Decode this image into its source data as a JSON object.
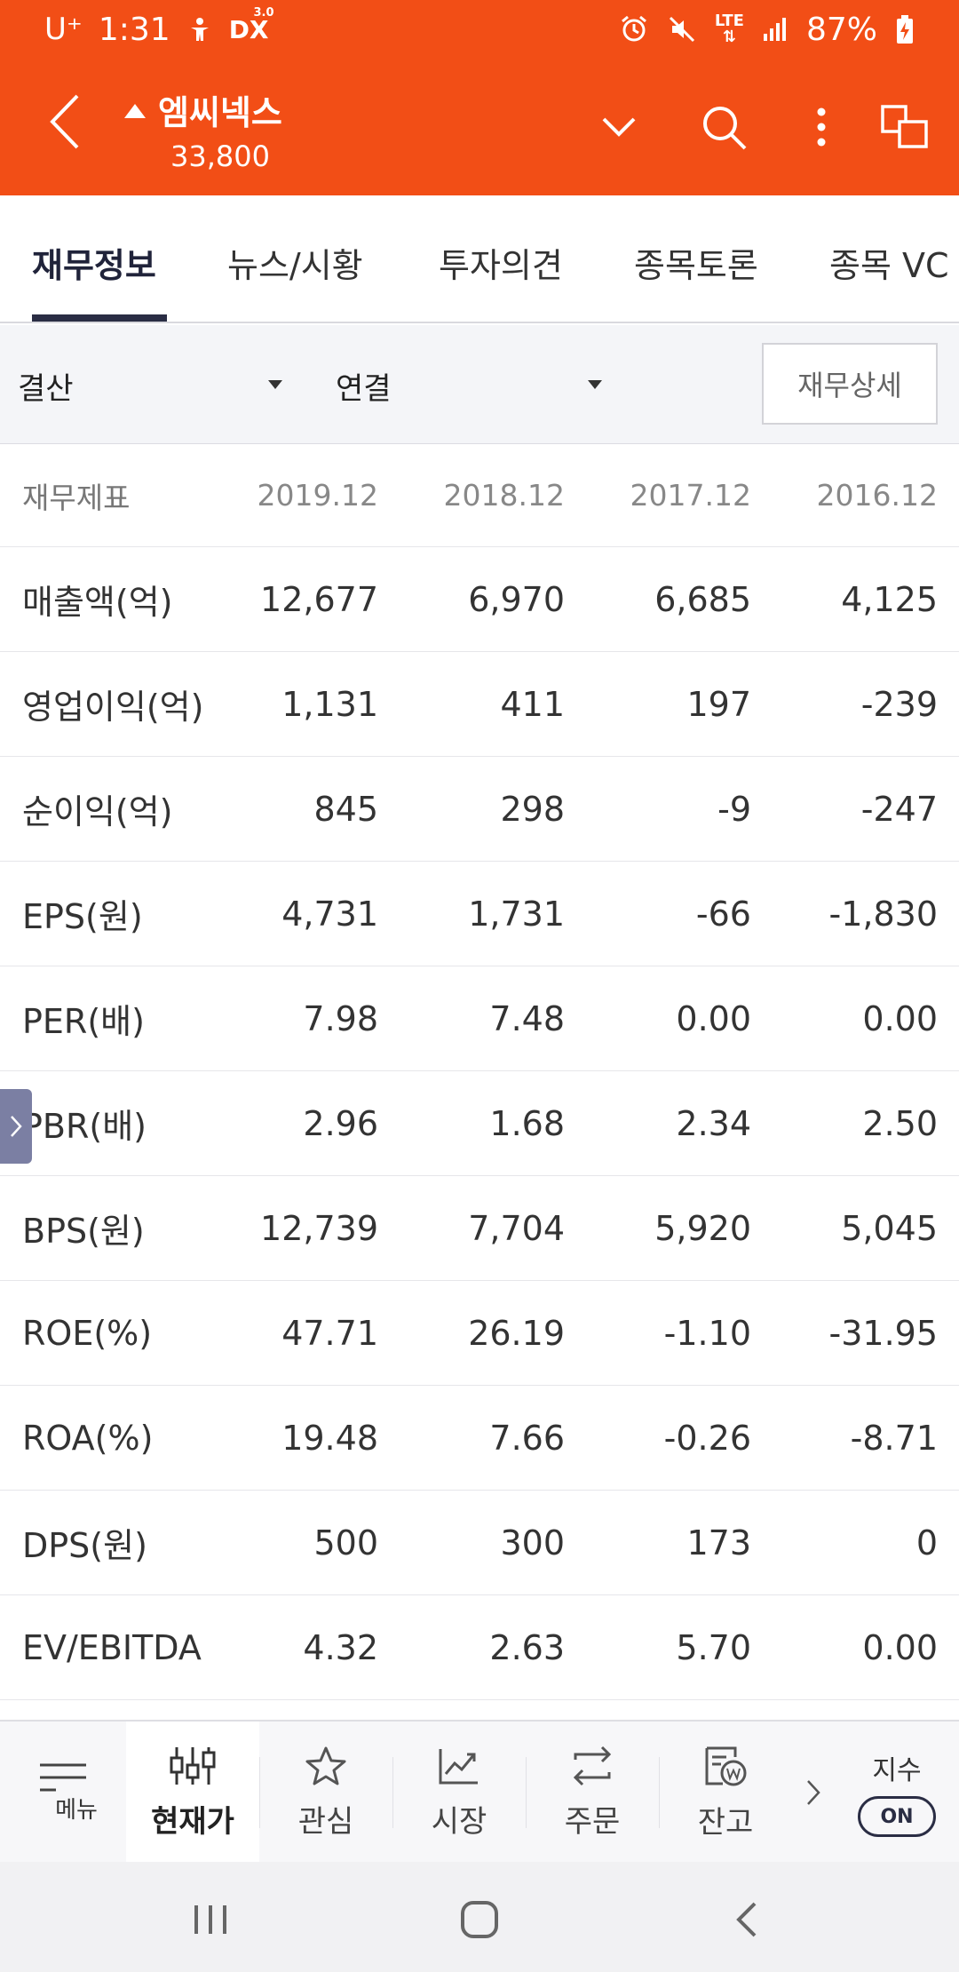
{
  "status_bar": {
    "carrier": "U⁺",
    "time": "1:31",
    "network": "LTE",
    "battery": "87%",
    "dex_label": "DX",
    "dex_version": "3.0"
  },
  "header": {
    "stock_name": "엠씨넥스",
    "stock_price": "33,800",
    "price_direction": "up",
    "accent_color": "#f24e16"
  },
  "tabs": [
    {
      "label": "재무정보",
      "active": true
    },
    {
      "label": "뉴스/시황",
      "active": false
    },
    {
      "label": "투자의견",
      "active": false
    },
    {
      "label": "종목토론",
      "active": false
    },
    {
      "label": "종목 VC",
      "active": false
    }
  ],
  "filters": {
    "period_select": "결산",
    "consolidation_select": "연결",
    "detail_button": "재무상세"
  },
  "table": {
    "header_label": "재무제표",
    "periods": [
      "2019.12",
      "2018.12",
      "2017.12",
      "2016.12"
    ],
    "rows": [
      {
        "label": "매출액(억)",
        "values": [
          "12,677",
          "6,970",
          "6,685",
          "4,125"
        ]
      },
      {
        "label": "영업이익(억)",
        "values": [
          "1,131",
          "411",
          "197",
          "-239"
        ]
      },
      {
        "label": "순이익(억)",
        "values": [
          "845",
          "298",
          "-9",
          "-247"
        ]
      },
      {
        "label": "EPS(원)",
        "values": [
          "4,731",
          "1,731",
          "-66",
          "-1,830"
        ]
      },
      {
        "label": "PER(배)",
        "values": [
          "7.98",
          "7.48",
          "0.00",
          "0.00"
        ]
      },
      {
        "label": "PBR(배)",
        "values": [
          "2.96",
          "1.68",
          "2.34",
          "2.50"
        ]
      },
      {
        "label": "BPS(원)",
        "values": [
          "12,739",
          "7,704",
          "5,920",
          "5,045"
        ]
      },
      {
        "label": "ROE(%)",
        "values": [
          "47.71",
          "26.19",
          "-1.10",
          "-31.95"
        ]
      },
      {
        "label": "ROA(%)",
        "values": [
          "19.48",
          "7.66",
          "-0.26",
          "-8.71"
        ]
      },
      {
        "label": "DPS(원)",
        "values": [
          "500",
          "300",
          "173",
          "0"
        ]
      },
      {
        "label": "EV/EBITDA",
        "values": [
          "4.32",
          "2.63",
          "5.70",
          "0.00"
        ]
      }
    ]
  },
  "bottom_nav": {
    "menu_label": "메뉴",
    "items": [
      {
        "label": "현재가",
        "icon": "candlestick-icon",
        "active": true
      },
      {
        "label": "관심",
        "icon": "star-icon",
        "active": false
      },
      {
        "label": "시장",
        "icon": "trend-chart-icon",
        "active": false
      },
      {
        "label": "주문",
        "icon": "swap-arrows-icon",
        "active": false
      },
      {
        "label": "잔고",
        "icon": "won-document-icon",
        "active": false
      }
    ],
    "index_label": "지수",
    "index_toggle": "ON"
  }
}
